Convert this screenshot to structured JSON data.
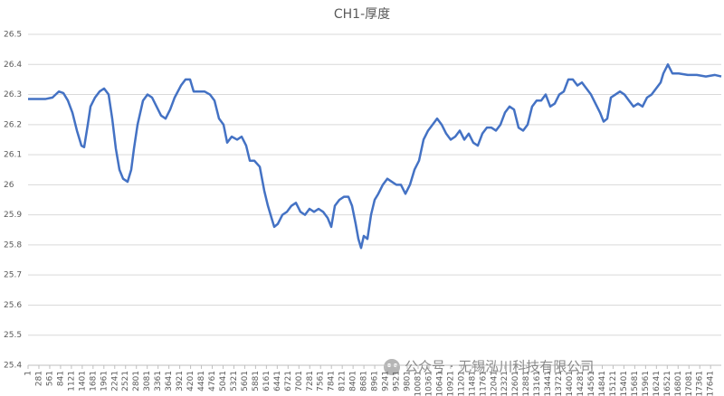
{
  "chart_data": {
    "type": "line",
    "title": "CH1-厚度",
    "x": [
      1,
      445,
      632,
      796,
      913,
      1030,
      1147,
      1264,
      1381,
      1451,
      1545,
      1615,
      1732,
      1849,
      1966,
      2083,
      2176,
      2270,
      2363,
      2457,
      2574,
      2667,
      2738,
      2831,
      2972,
      3089,
      3206,
      3322,
      3439,
      3556,
      3673,
      3790,
      3954,
      4071,
      4188,
      4281,
      4422,
      4562,
      4702,
      4819,
      4936,
      5053,
      5147,
      5264,
      5404,
      5521,
      5638,
      5732,
      5849,
      5989,
      6106,
      6200,
      6293,
      6363,
      6457,
      6574,
      6691,
      6807,
      6924,
      7041,
      7158,
      7275,
      7392,
      7509,
      7626,
      7743,
      7837,
      7930,
      8047,
      8164,
      8281,
      8374,
      8468,
      8538,
      8608,
      8678,
      8772,
      8865,
      8959,
      9053,
      9170,
      9286,
      9403,
      9520,
      9637,
      9754,
      9871,
      9988,
      10105,
      10222,
      10339,
      10456,
      10573,
      10690,
      10807,
      10924,
      11041,
      11158,
      11275,
      11391,
      11508,
      11625,
      11742,
      11859,
      11976,
      12093,
      12210,
      12327,
      12444,
      12561,
      12678,
      12795,
      12912,
      13028,
      13145,
      13262,
      13379,
      13496,
      13613,
      13730,
      13847,
      13964,
      14081,
      14198,
      14315,
      14432,
      14549,
      14666,
      14783,
      14876,
      14970,
      15064,
      15181,
      15298,
      15414,
      15531,
      15648,
      15765,
      15882,
      15999,
      16116,
      16233,
      16350,
      16420,
      16537,
      16654,
      16817,
      17051,
      17285,
      17519,
      17753,
      17917
    ],
    "series": [
      {
        "name": "CH1-厚度",
        "color": "#4472c4",
        "values": [
          26.285,
          26.285,
          26.29,
          26.31,
          26.305,
          26.28,
          26.24,
          26.18,
          26.13,
          26.125,
          26.2,
          26.26,
          26.29,
          26.31,
          26.32,
          26.3,
          26.22,
          26.12,
          26.05,
          26.02,
          26.01,
          26.05,
          26.12,
          26.2,
          26.28,
          26.3,
          26.29,
          26.26,
          26.23,
          26.22,
          26.25,
          26.29,
          26.33,
          26.35,
          26.35,
          26.31,
          26.31,
          26.31,
          26.3,
          26.28,
          26.22,
          26.2,
          26.14,
          26.16,
          26.15,
          26.16,
          26.13,
          26.08,
          26.08,
          26.06,
          25.98,
          25.93,
          25.89,
          25.86,
          25.87,
          25.9,
          25.91,
          25.93,
          25.94,
          25.91,
          25.9,
          25.92,
          25.91,
          25.92,
          25.91,
          25.89,
          25.86,
          25.93,
          25.95,
          25.96,
          25.96,
          25.93,
          25.87,
          25.82,
          25.79,
          25.83,
          25.82,
          25.9,
          25.95,
          25.97,
          26.0,
          26.02,
          26.01,
          26.0,
          26.0,
          25.97,
          26.0,
          26.05,
          26.08,
          26.15,
          26.18,
          26.2,
          26.22,
          26.2,
          26.17,
          26.15,
          26.16,
          26.18,
          26.15,
          26.17,
          26.14,
          26.13,
          26.17,
          26.19,
          26.19,
          26.18,
          26.2,
          26.24,
          26.26,
          26.25,
          26.19,
          26.18,
          26.2,
          26.26,
          26.28,
          26.28,
          26.3,
          26.26,
          26.27,
          26.3,
          26.31,
          26.35,
          26.35,
          26.33,
          26.34,
          26.32,
          26.3,
          26.27,
          26.24,
          26.21,
          26.22,
          26.29,
          26.3,
          26.31,
          26.3,
          26.28,
          26.26,
          26.27,
          26.26,
          26.29,
          26.3,
          26.32,
          26.34,
          26.37,
          26.4,
          26.37,
          26.37,
          26.365,
          26.365,
          26.36,
          26.365,
          26.36
        ]
      }
    ],
    "xlim": [
      1,
      17917
    ],
    "xticks": [
      1,
      281,
      561,
      841,
      1121,
      1401,
      1681,
      1961,
      2241,
      2521,
      2801,
      3081,
      3361,
      3641,
      3921,
      4201,
      4481,
      4761,
      5041,
      5321,
      5601,
      5881,
      6161,
      6441,
      6721,
      7001,
      7281,
      7561,
      7841,
      8121,
      8401,
      8681,
      8961,
      9241,
      9521,
      9801,
      10081,
      10361,
      10641,
      10921,
      11201,
      11481,
      11761,
      12041,
      12321,
      12601,
      12881,
      13161,
      13441,
      13721,
      14001,
      14281,
      14561,
      14841,
      15121,
      15401,
      15681,
      15961,
      16241,
      16521,
      16801,
      17081,
      17361,
      17641
    ],
    "ylim": [
      25.4,
      26.5
    ],
    "yticks": [
      25.4,
      25.5,
      25.6,
      25.7,
      25.8,
      25.9,
      26,
      26.1,
      26.2,
      26.3,
      26.4,
      26.5
    ],
    "grid": true,
    "watermark": "公众号 · 无锡泓川科技有限公司"
  }
}
